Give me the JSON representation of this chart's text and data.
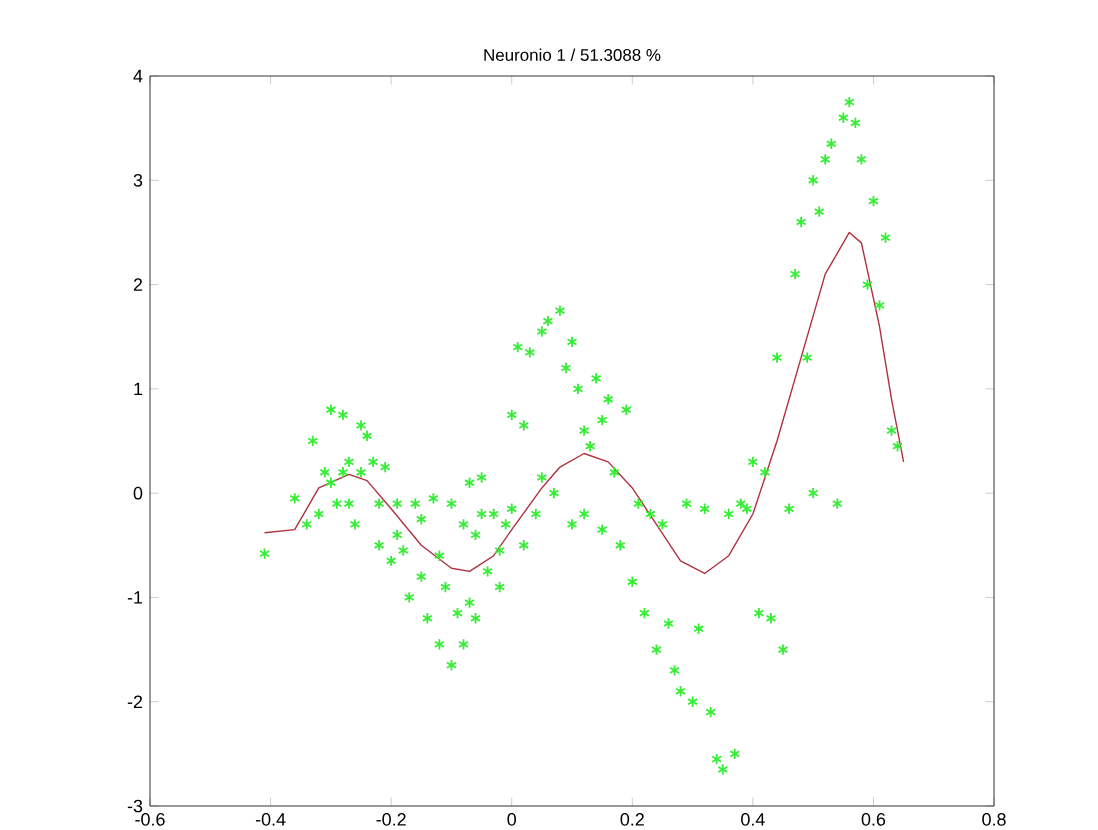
{
  "chart_data": {
    "type": "scatter",
    "title": "Neuronio 1 / 51.3088 %",
    "xlim": [
      -0.6,
      0.8
    ],
    "ylim": [
      -3,
      4
    ],
    "xticks": [
      -0.6,
      -0.4,
      -0.2,
      0,
      0.2,
      0.4,
      0.6,
      0.8
    ],
    "yticks": [
      -3,
      -2,
      -1,
      0,
      1,
      2,
      3,
      4
    ],
    "series": [
      {
        "color": "#33ee33",
        "marker": "cross",
        "x": [
          -0.41,
          -0.36,
          -0.34,
          -0.33,
          -0.32,
          -0.31,
          -0.3,
          -0.3,
          -0.29,
          -0.28,
          -0.28,
          -0.27,
          -0.27,
          -0.26,
          -0.25,
          -0.25,
          -0.24,
          -0.23,
          -0.22,
          -0.22,
          -0.21,
          -0.2,
          -0.19,
          -0.19,
          -0.18,
          -0.17,
          -0.16,
          -0.15,
          -0.15,
          -0.14,
          -0.13,
          -0.12,
          -0.12,
          -0.11,
          -0.1,
          -0.1,
          -0.09,
          -0.08,
          -0.08,
          -0.07,
          -0.07,
          -0.06,
          -0.06,
          -0.05,
          -0.05,
          -0.04,
          -0.03,
          -0.02,
          -0.02,
          -0.01,
          0.0,
          0.0,
          0.01,
          0.02,
          0.02,
          0.03,
          0.04,
          0.05,
          0.05,
          0.06,
          0.07,
          0.08,
          0.09,
          0.1,
          0.1,
          0.11,
          0.12,
          0.12,
          0.13,
          0.14,
          0.15,
          0.15,
          0.16,
          0.17,
          0.18,
          0.19,
          0.2,
          0.21,
          0.22,
          0.23,
          0.24,
          0.25,
          0.26,
          0.27,
          0.28,
          0.29,
          0.3,
          0.31,
          0.32,
          0.33,
          0.34,
          0.35,
          0.36,
          0.37,
          0.38,
          0.39,
          0.4,
          0.41,
          0.42,
          0.43,
          0.44,
          0.45,
          0.46,
          0.47,
          0.48,
          0.49,
          0.5,
          0.5,
          0.51,
          0.52,
          0.53,
          0.54,
          0.55,
          0.56,
          0.57,
          0.58,
          0.59,
          0.6,
          0.61,
          0.62,
          0.63,
          0.64
        ],
        "values": [
          -0.58,
          -0.05,
          -0.3,
          0.5,
          -0.2,
          0.2,
          0.8,
          0.1,
          -0.1,
          0.75,
          0.2,
          0.3,
          -0.1,
          -0.3,
          0.65,
          0.2,
          0.55,
          0.3,
          -0.5,
          -0.1,
          0.25,
          -0.65,
          -0.1,
          -0.4,
          -0.55,
          -1.0,
          -0.1,
          -0.8,
          -0.25,
          -1.2,
          -0.05,
          -1.45,
          -0.6,
          -0.9,
          -1.65,
          -0.1,
          -1.15,
          -0.3,
          -1.45,
          0.1,
          -1.05,
          -1.2,
          -0.4,
          -0.2,
          0.15,
          -0.75,
          -0.2,
          -0.55,
          -0.9,
          -0.3,
          0.75,
          -0.15,
          1.4,
          0.65,
          -0.5,
          1.35,
          -0.2,
          1.55,
          0.15,
          1.65,
          0.0,
          1.75,
          1.2,
          -0.3,
          1.45,
          1.0,
          0.6,
          -0.2,
          0.45,
          1.1,
          0.7,
          -0.35,
          0.9,
          0.2,
          -0.5,
          0.8,
          -0.85,
          -0.1,
          -1.15,
          -0.2,
          -1.5,
          -0.3,
          -1.25,
          -1.7,
          -1.9,
          -0.1,
          -2.0,
          -1.3,
          -0.15,
          -2.1,
          -2.55,
          -2.65,
          -0.2,
          -2.5,
          -0.1,
          -0.15,
          0.3,
          -1.15,
          0.2,
          -1.2,
          1.3,
          -1.5,
          -0.15,
          2.1,
          2.6,
          1.3,
          3.0,
          0.0,
          2.7,
          3.2,
          3.35,
          -0.1,
          3.6,
          3.75,
          3.55,
          3.2,
          2.0,
          2.8,
          1.8,
          2.45,
          0.6,
          0.45
        ],
        "line_style": "none"
      },
      {
        "type": "line",
        "color": "#b03040",
        "marker": "none",
        "line_style": "solid",
        "x": [
          -0.41,
          -0.36,
          -0.32,
          -0.27,
          -0.24,
          -0.2,
          -0.15,
          -0.1,
          -0.07,
          -0.03,
          0.0,
          0.05,
          0.08,
          0.12,
          0.16,
          0.2,
          0.24,
          0.28,
          0.32,
          0.36,
          0.4,
          0.44,
          0.48,
          0.52,
          0.56,
          0.58,
          0.61,
          0.63,
          0.65
        ],
        "values": [
          -0.38,
          -0.35,
          0.05,
          0.18,
          0.12,
          -0.15,
          -0.5,
          -0.72,
          -0.75,
          -0.6,
          -0.35,
          0.05,
          0.25,
          0.38,
          0.3,
          0.05,
          -0.3,
          -0.65,
          -0.77,
          -0.6,
          -0.2,
          0.5,
          1.3,
          2.1,
          2.5,
          2.4,
          1.6,
          0.9,
          0.3
        ]
      }
    ]
  }
}
